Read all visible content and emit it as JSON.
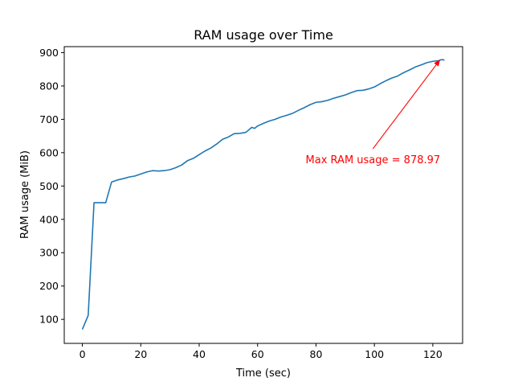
{
  "chart_data": {
    "type": "line",
    "title": "RAM usage over Time",
    "xlabel": "Time (sec)",
    "ylabel": "RAM usage (MiB)",
    "xlim": [
      -6.2,
      130.2
    ],
    "ylim": [
      28,
      918
    ],
    "xticks": [
      0,
      20,
      40,
      60,
      80,
      100,
      120
    ],
    "yticks": [
      100,
      200,
      300,
      400,
      500,
      600,
      700,
      800,
      900
    ],
    "grid": false,
    "legend": "none",
    "series": [
      {
        "color": "#1f77b4",
        "x": [
          0,
          2,
          4,
          6,
          8,
          10,
          12,
          14,
          16,
          18,
          20,
          22,
          24,
          26,
          28,
          30,
          32,
          34,
          36,
          38,
          40,
          42,
          44,
          46,
          48,
          50,
          52,
          54,
          56,
          58,
          59,
          60,
          62,
          64,
          66,
          68,
          70,
          72,
          74,
          76,
          78,
          80,
          82,
          84,
          86,
          88,
          90,
          92,
          94,
          96,
          98,
          100,
          102,
          104,
          106,
          108,
          110,
          112,
          114,
          116,
          118,
          120,
          122,
          123,
          124
        ],
        "y": [
          70,
          112,
          450,
          450,
          450,
          512,
          518,
          522,
          527,
          530,
          536,
          542,
          546,
          545,
          546,
          549,
          555,
          563,
          576,
          583,
          594,
          605,
          614,
          626,
          640,
          647,
          657,
          658,
          661,
          676,
          673,
          680,
          688,
          695,
          700,
          707,
          712,
          718,
          727,
          735,
          744,
          751,
          753,
          757,
          763,
          768,
          773,
          780,
          786,
          787,
          791,
          797,
          807,
          816,
          824,
          830,
          840,
          848,
          857,
          863,
          870,
          874,
          876,
          879,
          878
        ]
      }
    ],
    "annotations": [
      {
        "text": "Max RAM usage = 878.97",
        "color": "#ff0000",
        "point": [
          122.5,
          879
        ],
        "text_at": [
          99.5,
          578
        ]
      }
    ]
  }
}
